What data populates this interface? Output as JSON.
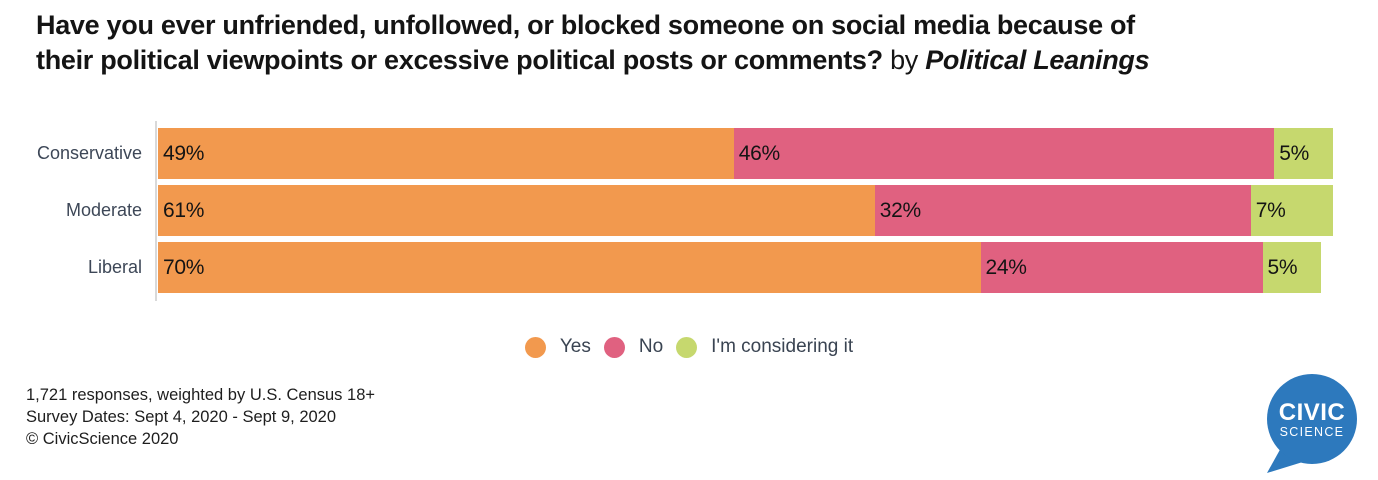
{
  "title": {
    "line1": "Have you ever unfriended, unfollowed, or blocked someone on social media because of",
    "line2_question": "their political viewpoints or excessive political posts or comments?",
    "line2_connector": "by",
    "line2_emphasis": "Political Leanings"
  },
  "chart_data": {
    "type": "bar",
    "orientation": "horizontal",
    "stacked": true,
    "title": "Have you ever unfriended, unfollowed, or blocked someone on social media because of their political viewpoints or excessive political posts or comments? by Political Leanings",
    "categories": [
      "Conservative",
      "Moderate",
      "Liberal"
    ],
    "series": [
      {
        "name": "Yes",
        "color": "#F2994E",
        "values": [
          49,
          61,
          70
        ]
      },
      {
        "name": "No",
        "color": "#E06180",
        "values": [
          46,
          32,
          24
        ]
      },
      {
        "name": "I'm considering it",
        "color": "#C6D86E",
        "values": [
          5,
          7,
          5
        ]
      }
    ],
    "value_suffix": "%",
    "xlim": [
      0,
      100
    ],
    "grid": false,
    "legend_position": "bottom"
  },
  "footer": {
    "line1": "1,721 responses, weighted by U.S. Census 18+",
    "line2": "Survey Dates: Sept 4, 2020 - Sept 9, 2020",
    "line3": "© CivicScience 2020"
  },
  "logo": {
    "line1": "CIVIC",
    "line2": "SCIENCE",
    "background_color": "#2D79BD",
    "text_color": "#FFFFFF"
  },
  "colors": {
    "background": "#FFFFFF",
    "title_text": "#141414",
    "axis_line": "#D9D9D9",
    "category_label": "#3D4757",
    "legend_label": "#3A4452",
    "bar_value_label": "#141414",
    "footer_text": "#1E1E1E"
  }
}
